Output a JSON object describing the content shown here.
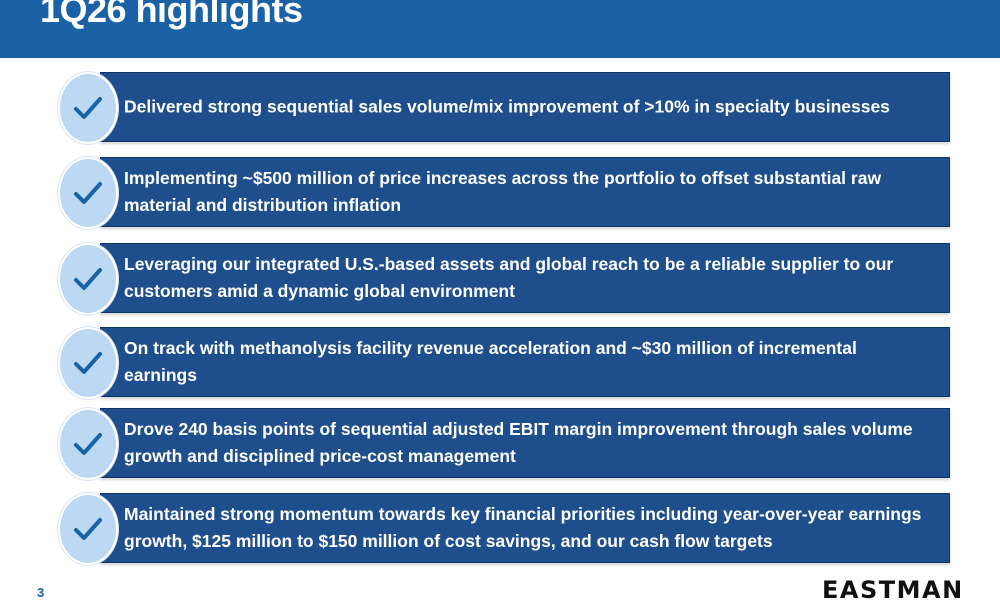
{
  "header": {
    "title": "1Q26 highlights"
  },
  "highlights": [
    "Delivered strong sequential sales volume/mix improvement of >10% in specialty businesses",
    "Implementing ~$500 million of price increases across the portfolio to offset substantial raw material and distribution inflation",
    "Leveraging our integrated U.S.-based assets and global reach to be a reliable supplier to our customers amid a dynamic global environment",
    "On track with methanolysis facility revenue acceleration and ~$30 million of incremental earnings",
    "Drove 240 basis points of sequential adjusted EBIT margin improvement through sales volume growth and disciplined price-cost management",
    "Maintained strong momentum towards key financial priorities including year-over-year earnings growth, $125 million to $150 million of cost savings, and our cash flow targets"
  ],
  "footer": {
    "page_number": "3",
    "logo_text": "EASTMAN"
  },
  "colors": {
    "header": "#1b61a6",
    "bar": "#1e4f8c",
    "check_circle": "#bcd8f2",
    "check": "#1b61a6"
  },
  "icons": {
    "bullet": "checkmark-icon"
  }
}
